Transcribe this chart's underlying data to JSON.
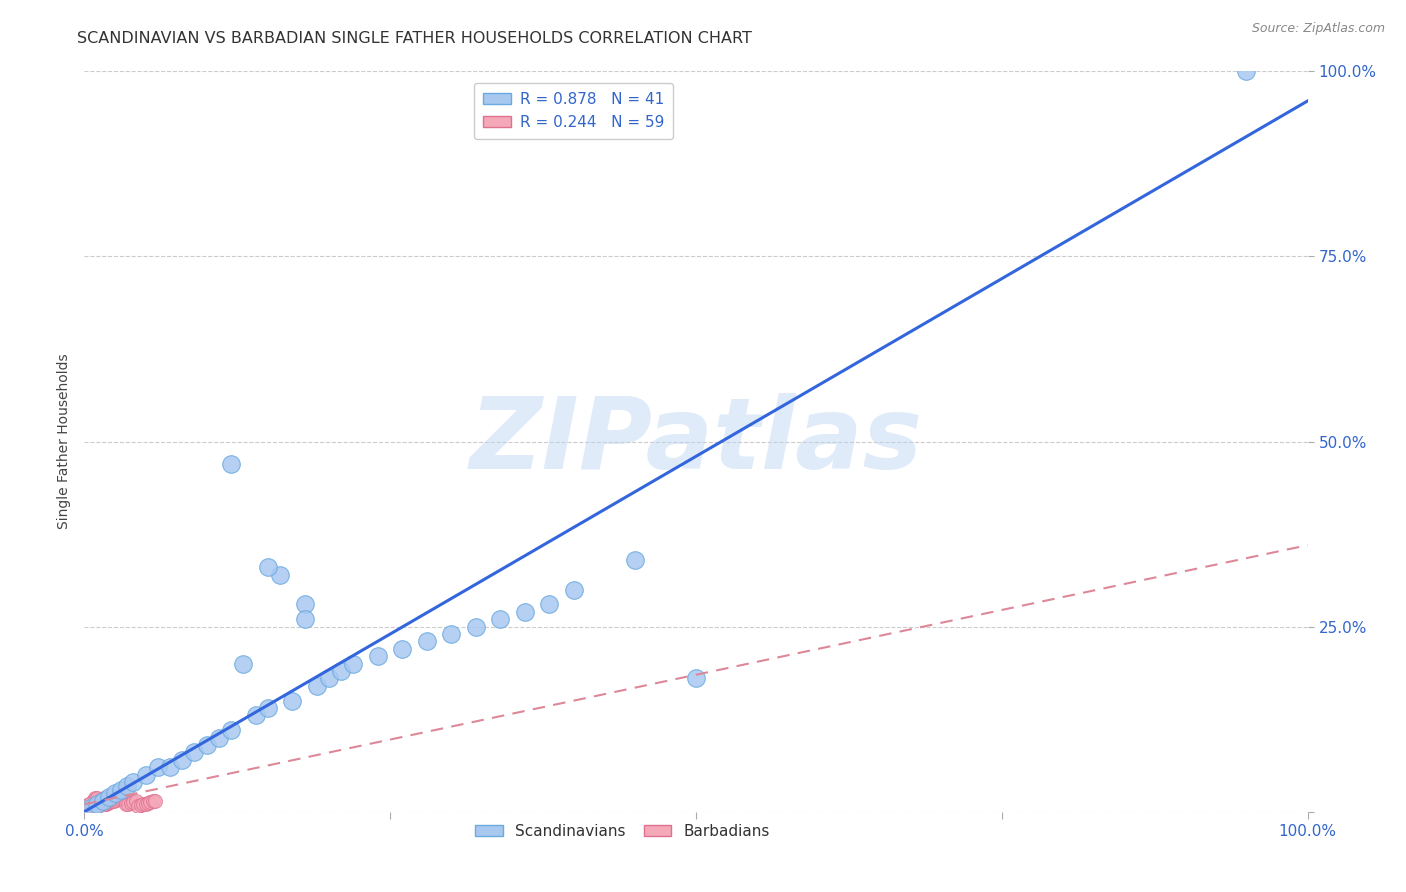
{
  "title": "SCANDINAVIAN VS BARBADIAN SINGLE FATHER HOUSEHOLDS CORRELATION CHART",
  "source": "Source: ZipAtlas.com",
  "ylabel": "Single Father Households",
  "xlim": [
    0,
    1.0
  ],
  "ylim": [
    0,
    1.0
  ],
  "xtick_positions": [
    0.0,
    0.25,
    0.5,
    0.75,
    1.0
  ],
  "ytick_positions": [
    0.0,
    0.25,
    0.5,
    0.75,
    1.0
  ],
  "scandinavian_R": 0.878,
  "scandinavian_N": 41,
  "barbadian_R": 0.244,
  "barbadian_N": 59,
  "scandinavian_color": "#a8c8f0",
  "scandinavian_edge": "#6aaae0",
  "barbadian_color": "#f4a8b8",
  "barbadian_edge": "#e07090",
  "scandinavian_line_color": "#3366dd",
  "barbadian_line_color": "#dd8899",
  "watermark": "ZIPatlas",
  "background_color": "#ffffff",
  "tick_color": "#3366cc",
  "grid_color": "#cccccc",
  "title_color": "#333333",
  "source_color": "#888888",
  "ylabel_color": "#444444",
  "legend_edge_color": "#cccccc",
  "scan_x": [
    0.005,
    0.01,
    0.015,
    0.02,
    0.025,
    0.03,
    0.035,
    0.04,
    0.05,
    0.06,
    0.07,
    0.08,
    0.09,
    0.1,
    0.11,
    0.12,
    0.13,
    0.14,
    0.15,
    0.16,
    0.17,
    0.18,
    0.19,
    0.2,
    0.21,
    0.22,
    0.24,
    0.26,
    0.28,
    0.3,
    0.32,
    0.34,
    0.36,
    0.38,
    0.4,
    0.45,
    0.5,
    0.12,
    0.15,
    0.18,
    0.95
  ],
  "scan_y": [
    0.005,
    0.01,
    0.015,
    0.02,
    0.025,
    0.03,
    0.035,
    0.04,
    0.05,
    0.06,
    0.06,
    0.07,
    0.08,
    0.09,
    0.1,
    0.11,
    0.2,
    0.13,
    0.14,
    0.32,
    0.15,
    0.28,
    0.17,
    0.18,
    0.19,
    0.2,
    0.21,
    0.22,
    0.23,
    0.24,
    0.25,
    0.26,
    0.27,
    0.28,
    0.3,
    0.34,
    0.18,
    0.47,
    0.33,
    0.26,
    1.0
  ],
  "barb_x": [
    0.001,
    0.002,
    0.002,
    0.003,
    0.003,
    0.004,
    0.004,
    0.005,
    0.005,
    0.006,
    0.006,
    0.007,
    0.007,
    0.008,
    0.008,
    0.009,
    0.009,
    0.01,
    0.01,
    0.011,
    0.011,
    0.012,
    0.012,
    0.013,
    0.014,
    0.015,
    0.016,
    0.017,
    0.018,
    0.019,
    0.02,
    0.022,
    0.024,
    0.026,
    0.028,
    0.03,
    0.032,
    0.034,
    0.036,
    0.038,
    0.04,
    0.042,
    0.044,
    0.046,
    0.048,
    0.05,
    0.052,
    0.054,
    0.056,
    0.058,
    0.002,
    0.003,
    0.004,
    0.005,
    0.006,
    0.007,
    0.008,
    0.009,
    0.01
  ],
  "barb_y": [
    0.002,
    0.003,
    0.004,
    0.005,
    0.006,
    0.007,
    0.008,
    0.009,
    0.01,
    0.011,
    0.012,
    0.013,
    0.005,
    0.015,
    0.016,
    0.017,
    0.018,
    0.019,
    0.01,
    0.011,
    0.012,
    0.013,
    0.014,
    0.015,
    0.016,
    0.017,
    0.018,
    0.01,
    0.011,
    0.012,
    0.013,
    0.014,
    0.015,
    0.016,
    0.017,
    0.018,
    0.019,
    0.01,
    0.011,
    0.012,
    0.013,
    0.014,
    0.008,
    0.009,
    0.01,
    0.011,
    0.012,
    0.013,
    0.014,
    0.015,
    0.008,
    0.009,
    0.01,
    0.006,
    0.007,
    0.008,
    0.005,
    0.006,
    0.007
  ],
  "blue_line_x": [
    0.0,
    1.0
  ],
  "blue_line_y": [
    0.0,
    0.96
  ],
  "pink_line_x": [
    0.0,
    1.0
  ],
  "pink_line_y": [
    0.01,
    0.36
  ]
}
